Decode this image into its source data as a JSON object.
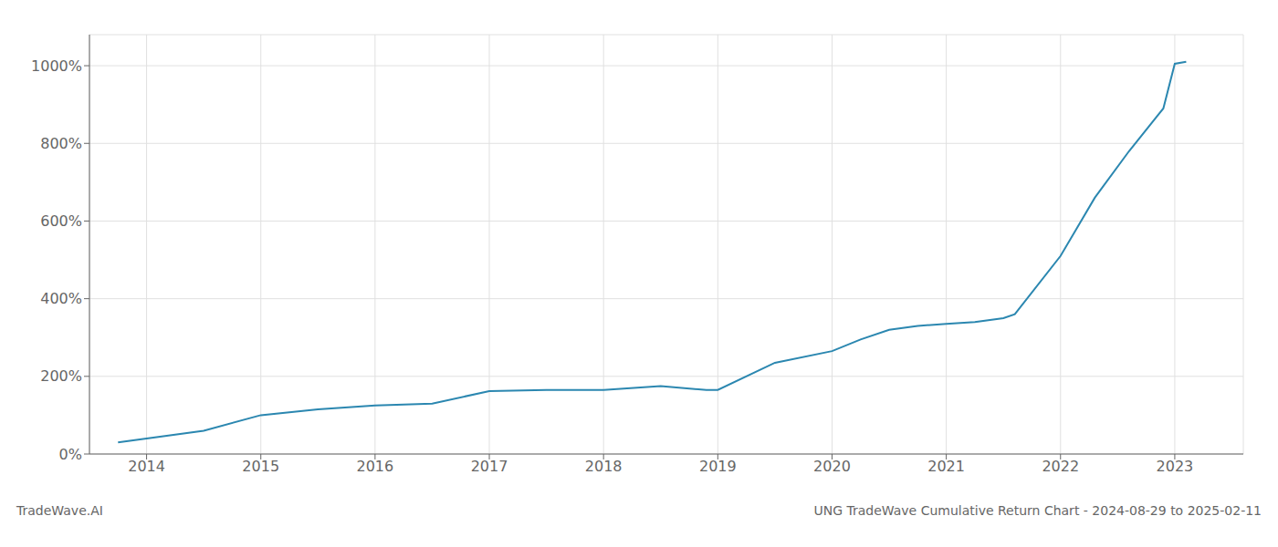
{
  "chart_data": {
    "type": "line",
    "title": "UNG TradeWave Cumulative Return Chart - 2024-08-29 to 2025-02-11",
    "annotations": [
      "TradeWave.AI"
    ],
    "x": [
      2013.75,
      2014.0,
      2014.5,
      2015.0,
      2015.5,
      2016.0,
      2016.5,
      2017.0,
      2017.5,
      2017.9,
      2018.0,
      2018.5,
      2018.9,
      2019.0,
      2019.5,
      2020.0,
      2020.25,
      2020.5,
      2020.75,
      2021.0,
      2021.25,
      2021.5,
      2021.6,
      2022.0,
      2022.3,
      2022.6,
      2022.9,
      2023.0,
      2023.1
    ],
    "values": [
      30,
      40,
      60,
      100,
      115,
      125,
      130,
      162,
      165,
      165,
      165,
      175,
      165,
      165,
      235,
      265,
      295,
      320,
      330,
      335,
      340,
      350,
      360,
      510,
      660,
      780,
      890,
      1005,
      1010
    ],
    "color": "#2b87b0",
    "xlim": [
      2013.5,
      2023.6
    ],
    "xticks": [
      2014,
      2015,
      2016,
      2017,
      2018,
      2019,
      2020,
      2021,
      2022,
      2023
    ],
    "ylim": [
      0,
      1080
    ],
    "yticks": [
      {
        "value": 0,
        "label": "0%"
      },
      {
        "value": 200,
        "label": "200%"
      },
      {
        "value": 400,
        "label": "400%"
      },
      {
        "value": 600,
        "label": "600%"
      },
      {
        "value": 800,
        "label": "800%"
      },
      {
        "value": 1000,
        "label": "1000%"
      }
    ],
    "grid": true
  }
}
